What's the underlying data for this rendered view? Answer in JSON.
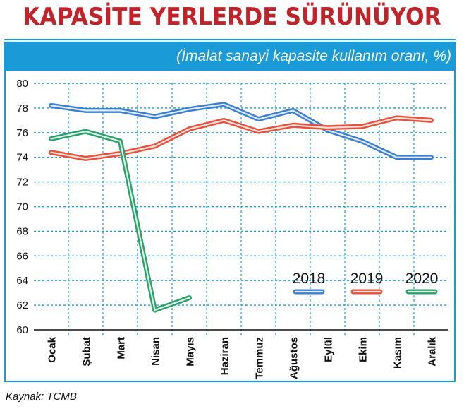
{
  "title": "KAPASİTE YERLERDE SÜRÜNÜYOR",
  "source": "Kaynak: TCMB",
  "colors": {
    "accent": "#1a9ad6",
    "title": "#c0242b",
    "s2018": "#3a7fd0",
    "s2019": "#e8503a",
    "s2020": "#2aa06a"
  },
  "chart_data": {
    "type": "line",
    "title": "(İmalat sanayi kapasite kullanım oranı, %)",
    "categories": [
      "Ocak",
      "Şubat",
      "Mart",
      "Nisan",
      "Mayıs",
      "Haziran",
      "Temmuz",
      "Ağustos",
      "Eylül",
      "Ekim",
      "Kasım",
      "Aralık"
    ],
    "series": [
      {
        "name": "2018",
        "values": [
          78.2,
          77.8,
          77.8,
          77.3,
          77.9,
          78.3,
          77.1,
          77.8,
          76.2,
          75.3,
          74.0,
          74.0
        ]
      },
      {
        "name": "2019",
        "values": [
          74.4,
          73.9,
          74.3,
          74.9,
          76.3,
          77.0,
          76.1,
          76.6,
          76.4,
          76.5,
          77.2,
          77.0
        ]
      },
      {
        "name": "2020",
        "values": [
          75.5,
          76.1,
          75.3,
          61.6,
          62.6,
          null,
          null,
          null,
          null,
          null,
          null,
          null
        ]
      }
    ],
    "yticks": [
      60,
      62,
      64,
      66,
      68,
      70,
      72,
      74,
      76,
      78,
      80
    ],
    "ylim": [
      60,
      80
    ],
    "grid": true,
    "legend_position": "bottom-right"
  }
}
